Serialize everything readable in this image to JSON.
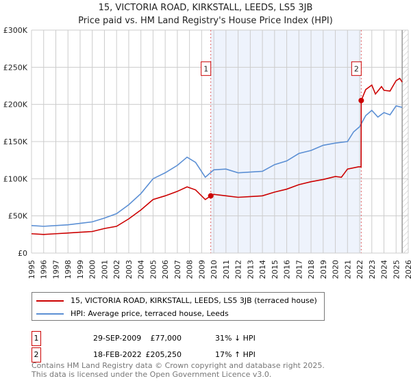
{
  "title": "15, VICTORIA ROAD, KIRKSTALL, LEEDS, LS5 3JB",
  "subtitle": "Price paid vs. HM Land Registry's House Price Index (HPI)",
  "chart_data": {
    "type": "line",
    "title": "15, VICTORIA ROAD, KIRKSTALL, LEEDS, LS5 3JB — Price paid vs. HM Land Registry's House Price Index (HPI)",
    "xlim": [
      1995,
      2026
    ],
    "ylim": [
      0,
      300000
    ],
    "x_ticks": [
      "1995",
      "1996",
      "1997",
      "1998",
      "1999",
      "2000",
      "2001",
      "2002",
      "2003",
      "2004",
      "2005",
      "2006",
      "2007",
      "2008",
      "2009",
      "2010",
      "2011",
      "2012",
      "2013",
      "2014",
      "2015",
      "2016",
      "2017",
      "2018",
      "2019",
      "2020",
      "2021",
      "2022",
      "2023",
      "2024",
      "2025",
      "2026"
    ],
    "y_ticks": [
      {
        "v": 0,
        "label": "£0"
      },
      {
        "v": 50000,
        "label": "£50K"
      },
      {
        "v": 100000,
        "label": "£100K"
      },
      {
        "v": 150000,
        "label": "£150K"
      },
      {
        "v": 200000,
        "label": "£200K"
      },
      {
        "v": 250000,
        "label": "£250K"
      },
      {
        "v": 300000,
        "label": "£300K"
      }
    ],
    "grid": true,
    "shaded_range": [
      2009.75,
      2022.13
    ],
    "forecast_hatch_from": 2025.5,
    "colors": {
      "property": "#cc0000",
      "hpi": "#5b8fd4",
      "shade": "#eef3fc",
      "marker_line": "#e06060"
    },
    "series": [
      {
        "name": "15, VICTORIA ROAD, KIRKSTALL, LEEDS, LS5 3JB (terraced house)",
        "key": "property",
        "x": [
          1995,
          1996,
          1997,
          1998,
          1999,
          2000,
          2001,
          2002,
          2003,
          2004,
          2005,
          2006,
          2007,
          2007.8,
          2008.5,
          2009.3,
          2009.75,
          2010,
          2011,
          2012,
          2013,
          2014,
          2015,
          2016,
          2017,
          2018,
          2019,
          2020,
          2020.5,
          2021,
          2021.9,
          2022.12,
          2022.13,
          2022.5,
          2023,
          2023.3,
          2023.8,
          2024,
          2024.5,
          2025,
          2025.3,
          2025.5
        ],
        "y": [
          26000,
          25000,
          26000,
          27000,
          28000,
          29000,
          33000,
          36000,
          46000,
          58000,
          72000,
          77000,
          83000,
          89000,
          85000,
          72000,
          77000,
          79000,
          77000,
          75000,
          76000,
          77000,
          82000,
          86000,
          92000,
          96000,
          99000,
          103000,
          102000,
          113000,
          116000,
          116000,
          205250,
          220000,
          226000,
          214000,
          224000,
          219000,
          218000,
          232000,
          235000,
          230000
        ]
      },
      {
        "name": "HPI: Average price, terraced house, Leeds",
        "key": "hpi",
        "x": [
          1995,
          1996,
          1997,
          1998,
          1999,
          2000,
          2001,
          2002,
          2003,
          2004,
          2005,
          2006,
          2007,
          2007.8,
          2008.5,
          2009.3,
          2010,
          2011,
          2012,
          2013,
          2014,
          2015,
          2016,
          2017,
          2018,
          2019,
          2020,
          2021,
          2021.5,
          2022,
          2022.5,
          2023,
          2023.5,
          2024,
          2024.5,
          2025,
          2025.5
        ],
        "y": [
          37000,
          36000,
          37000,
          38000,
          40000,
          42000,
          47000,
          53000,
          65000,
          80000,
          100000,
          108000,
          118000,
          129000,
          122000,
          102000,
          112000,
          113000,
          108000,
          109000,
          110000,
          119000,
          124000,
          134000,
          138000,
          145000,
          148000,
          150000,
          163000,
          170000,
          185000,
          192000,
          183000,
          189000,
          186000,
          198000,
          196000
        ]
      }
    ],
    "annotations": [
      {
        "label": "1",
        "x": 2009.75,
        "y": 77000
      },
      {
        "label": "2",
        "x": 2022.13,
        "y": 205250
      }
    ]
  },
  "legend": {
    "property": "15, VICTORIA ROAD, KIRKSTALL, LEEDS, LS5 3JB (terraced house)",
    "hpi": "HPI: Average price, terraced house, Leeds"
  },
  "transactions": [
    {
      "num": "1",
      "date": "29-SEP-2009",
      "price": "£77,000",
      "hpi": "31% ↓ HPI"
    },
    {
      "num": "2",
      "date": "18-FEB-2022",
      "price": "£205,250",
      "hpi": "17% ↑ HPI"
    }
  ],
  "footer": {
    "line1": "Contains HM Land Registry data © Crown copyright and database right 2025.",
    "line2": "This data is licensed under the Open Government Licence v3.0."
  }
}
